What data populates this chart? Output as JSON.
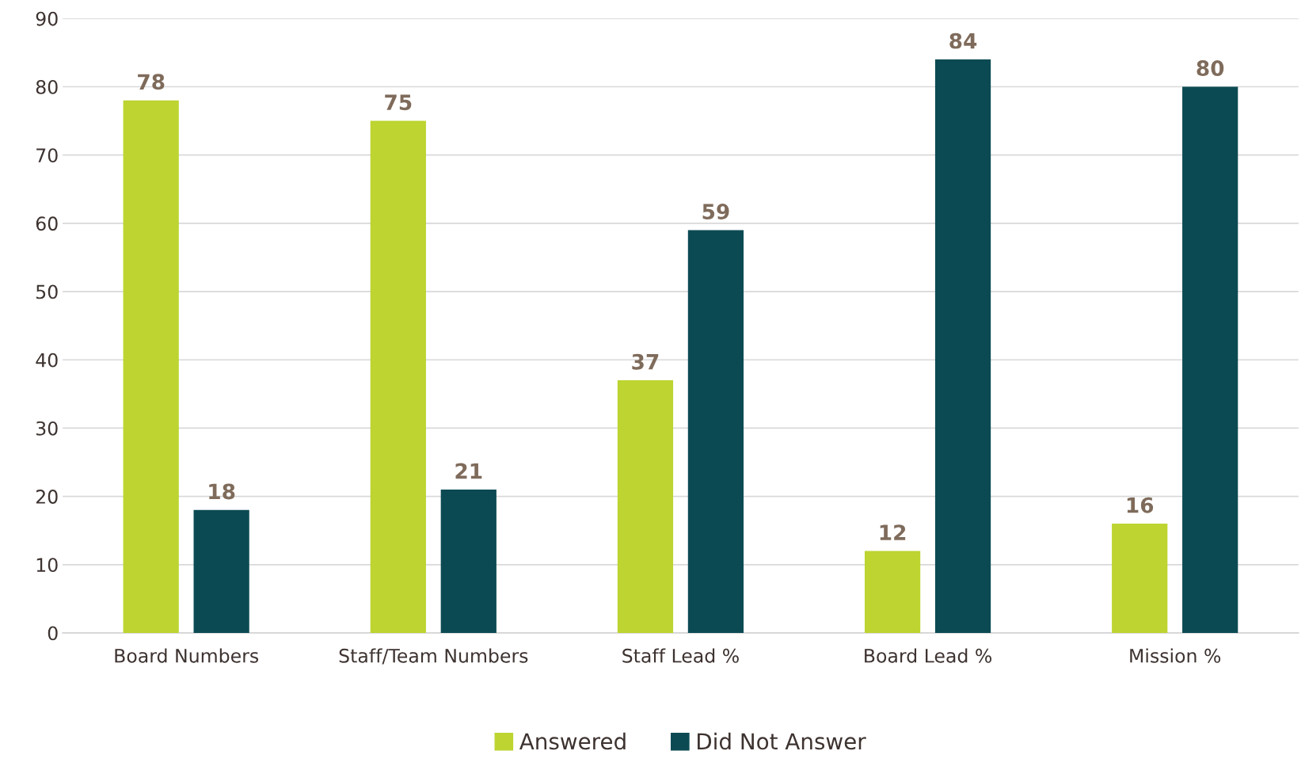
{
  "chart_data": {
    "type": "bar",
    "categories": [
      "Board Numbers",
      "Staff/Team Numbers",
      "Staff Lead %",
      "Board Lead %",
      "Mission %"
    ],
    "series": [
      {
        "name": "Answered",
        "color": "#bdd431",
        "values": [
          78,
          75,
          37,
          12,
          16
        ]
      },
      {
        "name": "Did Not Answer",
        "color": "#0b4a53",
        "values": [
          18,
          21,
          59,
          84,
          80
        ]
      }
    ],
    "ylim": [
      0,
      90
    ],
    "yticks": [
      0,
      10,
      20,
      30,
      40,
      50,
      60,
      70,
      80,
      90
    ],
    "grid": "y",
    "legend": "bottom",
    "data_labels": true
  }
}
